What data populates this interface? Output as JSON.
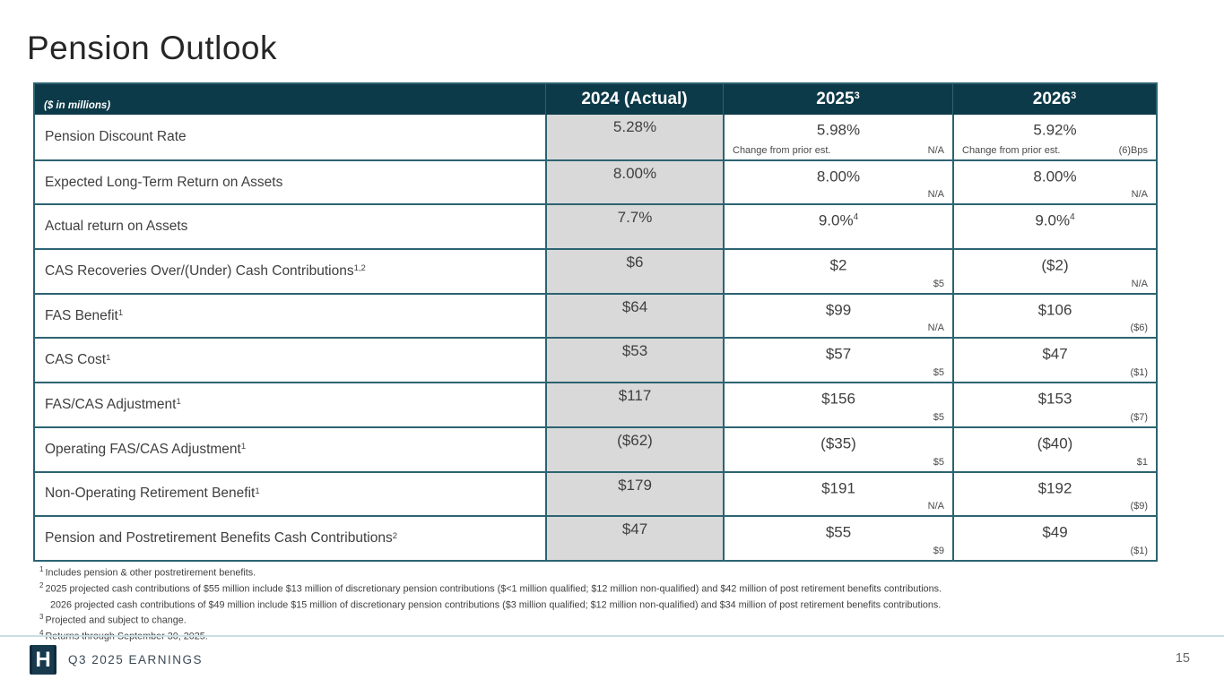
{
  "slide": {
    "title": "Pension Outlook",
    "footer_label": "Q3 2025 EARNINGS",
    "logo_letter": "H",
    "page_number": "15"
  },
  "colors": {
    "header_bg": "#0d3a49",
    "table_border": "#2c6372",
    "actual_column_bg": "#d9d9d9",
    "footer_line": "#ccdde6"
  },
  "table": {
    "unit_label": "($ in millions)",
    "columns": [
      {
        "label": "2024 (Actual)",
        "sup": ""
      },
      {
        "label": "2025",
        "sup": "3"
      },
      {
        "label": "2026",
        "sup": "3"
      }
    ],
    "rows": [
      {
        "label": "Pension Discount Rate",
        "label_sup": "",
        "y2024": "5.28%",
        "y2025": {
          "main": "5.98%",
          "main_sup": "",
          "sub_label": "Change from prior est.",
          "sub_value": "N/A"
        },
        "y2026": {
          "main": "5.92%",
          "main_sup": "",
          "sub_label": "Change from prior est.",
          "sub_value": "(6)Bps"
        }
      },
      {
        "label": "Expected Long-Term Return on Assets",
        "label_sup": "",
        "y2024": "8.00%",
        "y2025": {
          "main": "8.00%",
          "main_sup": "",
          "sub_label": "",
          "sub_value": "N/A"
        },
        "y2026": {
          "main": "8.00%",
          "main_sup": "",
          "sub_label": "",
          "sub_value": "N/A"
        }
      },
      {
        "label": "Actual return on Assets",
        "label_sup": "",
        "y2024": "7.7%",
        "y2025": {
          "main": "9.0%",
          "main_sup": "4",
          "sub_label": "",
          "sub_value": ""
        },
        "y2026": {
          "main": "9.0%",
          "main_sup": "4",
          "sub_label": "",
          "sub_value": ""
        }
      },
      {
        "label": "CAS Recoveries Over/(Under) Cash Contributions",
        "label_sup": "1,2",
        "y2024": "$6",
        "y2025": {
          "main": "$2",
          "main_sup": "",
          "sub_label": "",
          "sub_value": "$5"
        },
        "y2026": {
          "main": "($2)",
          "main_sup": "",
          "sub_label": "",
          "sub_value": "N/A"
        }
      },
      {
        "label": "FAS Benefit",
        "label_sup": "1",
        "y2024": "$64",
        "y2025": {
          "main": "$99",
          "main_sup": "",
          "sub_label": "",
          "sub_value": "N/A"
        },
        "y2026": {
          "main": "$106",
          "main_sup": "",
          "sub_label": "",
          "sub_value": "($6)"
        }
      },
      {
        "label": "CAS Cost",
        "label_sup": "1",
        "y2024": "$53",
        "y2025": {
          "main": "$57",
          "main_sup": "",
          "sub_label": "",
          "sub_value": "$5"
        },
        "y2026": {
          "main": "$47",
          "main_sup": "",
          "sub_label": "",
          "sub_value": "($1)"
        }
      },
      {
        "label": "FAS/CAS Adjustment",
        "label_sup": "1",
        "y2024": "$117",
        "y2025": {
          "main": "$156",
          "main_sup": "",
          "sub_label": "",
          "sub_value": "$5"
        },
        "y2026": {
          "main": "$153",
          "main_sup": "",
          "sub_label": "",
          "sub_value": "($7)"
        }
      },
      {
        "label": "Operating FAS/CAS Adjustment",
        "label_sup": "1",
        "y2024": "($62)",
        "y2025": {
          "main": "($35)",
          "main_sup": "",
          "sub_label": "",
          "sub_value": "$5"
        },
        "y2026": {
          "main": "($40)",
          "main_sup": "",
          "sub_label": "",
          "sub_value": "$1"
        }
      },
      {
        "label": "Non-Operating Retirement Benefit",
        "label_sup": "1",
        "y2024": "$179",
        "y2025": {
          "main": "$191",
          "main_sup": "",
          "sub_label": "",
          "sub_value": "N/A"
        },
        "y2026": {
          "main": "$192",
          "main_sup": "",
          "sub_label": "",
          "sub_value": "($9)"
        }
      },
      {
        "label": "Pension and Postretirement Benefits Cash Contributions",
        "label_sup": "2",
        "y2024": "$47",
        "y2025": {
          "main": "$55",
          "main_sup": "",
          "sub_label": "",
          "sub_value": "$9"
        },
        "y2026": {
          "main": "$49",
          "main_sup": "",
          "sub_label": "",
          "sub_value": "($1)"
        }
      }
    ]
  },
  "footnotes": [
    {
      "sup": "1",
      "text": "Includes pension & other postretirement benefits."
    },
    {
      "sup": "2",
      "text": "2025 projected cash contributions of $55 million include $13 million of discretionary pension contributions ($<1 million qualified; $12 million non-qualified) and $42 million of post retirement benefits contributions."
    },
    {
      "sup": "",
      "text": "2026 projected cash contributions of $49 million include $15 million of discretionary pension contributions ($3 million qualified; $12 million non-qualified) and $34 million of post retirement benefits contributions."
    },
    {
      "sup": "3",
      "text": "Projected and subject to change."
    },
    {
      "sup": "4",
      "text": "Returns through September 30, 2025."
    }
  ]
}
